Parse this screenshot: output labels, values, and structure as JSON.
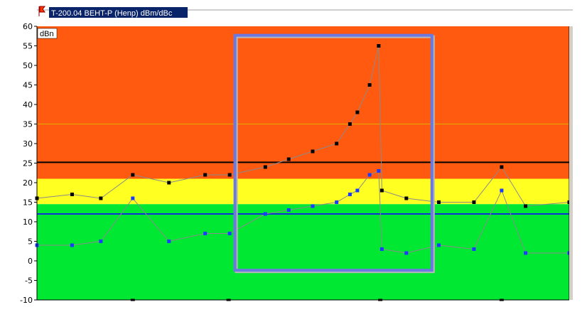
{
  "window": {
    "title": "T-200.04 BEHT-P (Henp) dBm/dBc",
    "flag_icon": "flag-icon",
    "title_bg_color": "#0a246a",
    "flag_color": "#ff3300"
  },
  "chart_data": {
    "type": "line",
    "unit_label": "dBn",
    "ylim": [
      -10,
      60
    ],
    "ytick_values": [
      60,
      55,
      50,
      45,
      40,
      35,
      30,
      25,
      20,
      15,
      10,
      5,
      0,
      -5,
      -10
    ],
    "ytick_labels": [
      "60",
      "55",
      "50",
      "45",
      "40",
      "35",
      "30",
      "25",
      "20",
      "15",
      "10",
      "5",
      "0",
      "-5",
      "-10"
    ],
    "xlim": [
      0,
      100
    ],
    "x_ticks": [
      18,
      36,
      64.5,
      87.3
    ],
    "bands": [
      {
        "from": 21,
        "to": 60,
        "color": "#ff5a10"
      },
      {
        "from": 14.5,
        "to": 21,
        "color": "#ffff22"
      },
      {
        "from": -10,
        "to": 14.5,
        "color": "#00e832"
      }
    ],
    "band_boundary": 35,
    "reference_lines": [
      {
        "value": 25.2,
        "color": "#000000"
      },
      {
        "value": 12,
        "color": "#1030d8"
      }
    ],
    "series": [
      {
        "color": "#000000",
        "x": [
          0,
          6.6,
          12,
          18,
          24.8,
          31.6,
          36.2,
          42.9,
          47.3,
          51.8,
          56.3,
          58.8,
          60.2,
          62.5,
          64.2,
          64.8,
          69.4,
          75.5,
          82.1,
          87.3,
          91.8,
          100
        ],
        "y": [
          16,
          17,
          16,
          22,
          20,
          22,
          22,
          24,
          26,
          28,
          30,
          35,
          38,
          45,
          55,
          18,
          16,
          15,
          15,
          24,
          14,
          15
        ]
      },
      {
        "color": "#1a3cff",
        "x": [
          0,
          6.6,
          12,
          18,
          24.8,
          31.6,
          36.2,
          42.9,
          47.3,
          51.8,
          56.3,
          58.8,
          60.2,
          62.5,
          64.2,
          64.8,
          69.4,
          75.5,
          82.1,
          87.3,
          91.8,
          100
        ],
        "y": [
          4,
          4,
          5,
          16,
          5,
          7,
          7,
          12,
          13,
          14,
          15,
          17,
          18,
          22,
          23,
          3,
          2,
          4,
          3,
          18,
          2,
          2
        ]
      }
    ],
    "selection": {
      "x0": 37.2,
      "x1": 74.2,
      "y0": -2.4,
      "y1": 57.7,
      "color": "#6a78e0"
    }
  }
}
